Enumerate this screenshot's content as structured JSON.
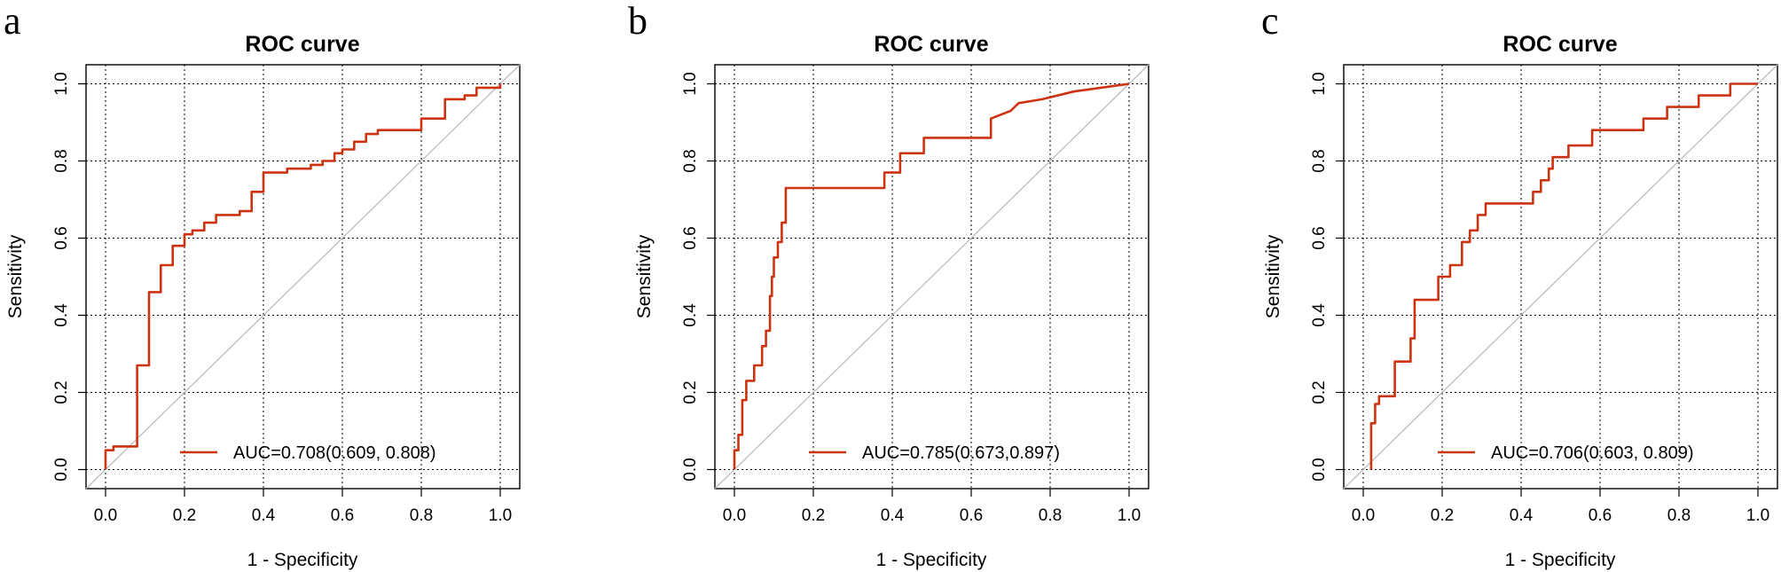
{
  "colors": {
    "curve": "#cc3311",
    "diagonal": "#bdbdbd"
  },
  "chart_data": [
    {
      "panel": "a",
      "type": "line",
      "title": "ROC curve",
      "xlabel": "1 - Specificity",
      "ylabel": "Sensitivity",
      "xlim": [
        0,
        1
      ],
      "ylim": [
        0,
        1
      ],
      "xticks": [
        "0.0",
        "0.2",
        "0.4",
        "0.6",
        "0.8",
        "1.0"
      ],
      "yticks": [
        "0.0",
        "0.2",
        "0.4",
        "0.6",
        "0.8",
        "1.0"
      ],
      "grid": true,
      "legend": {
        "label": "AUC=0.708(0.609, 0.808)",
        "position": "bottom-right"
      },
      "series": [
        {
          "name": "AUC=0.708(0.609, 0.808)",
          "x": [
            0,
            0,
            0.02,
            0.02,
            0.08,
            0.08,
            0.11,
            0.11,
            0.14,
            0.14,
            0.17,
            0.17,
            0.2,
            0.2,
            0.22,
            0.22,
            0.25,
            0.25,
            0.28,
            0.28,
            0.34,
            0.34,
            0.37,
            0.37,
            0.4,
            0.4,
            0.46,
            0.46,
            0.52,
            0.52,
            0.55,
            0.55,
            0.58,
            0.58,
            0.6,
            0.6,
            0.63,
            0.63,
            0.66,
            0.66,
            0.69,
            0.69,
            0.8,
            0.8,
            0.86,
            0.86,
            0.91,
            0.91,
            0.94,
            0.94,
            1,
            1
          ],
          "y": [
            0,
            0.05,
            0.05,
            0.06,
            0.06,
            0.27,
            0.27,
            0.46,
            0.46,
            0.53,
            0.53,
            0.58,
            0.58,
            0.61,
            0.61,
            0.62,
            0.62,
            0.64,
            0.64,
            0.66,
            0.66,
            0.67,
            0.67,
            0.72,
            0.72,
            0.77,
            0.77,
            0.78,
            0.78,
            0.79,
            0.79,
            0.8,
            0.8,
            0.82,
            0.82,
            0.83,
            0.83,
            0.85,
            0.85,
            0.87,
            0.87,
            0.88,
            0.88,
            0.91,
            0.91,
            0.96,
            0.96,
            0.97,
            0.97,
            0.99,
            0.99,
            1
          ]
        }
      ]
    },
    {
      "panel": "b",
      "type": "line",
      "title": "ROC curve",
      "xlabel": "1 - Specificity",
      "ylabel": "Sensitivity",
      "xlim": [
        0,
        1
      ],
      "ylim": [
        0,
        1
      ],
      "xticks": [
        "0.0",
        "0.2",
        "0.4",
        "0.6",
        "0.8",
        "1.0"
      ],
      "yticks": [
        "0.0",
        "0.2",
        "0.4",
        "0.6",
        "0.8",
        "1.0"
      ],
      "grid": true,
      "legend": {
        "label": "AUC=0.785(0.673,0.897)",
        "position": "bottom-right"
      },
      "series": [
        {
          "name": "AUC=0.785(0.673,0.897)",
          "x": [
            0,
            0,
            0.01,
            0.01,
            0.02,
            0.02,
            0.03,
            0.03,
            0.05,
            0.05,
            0.07,
            0.07,
            0.08,
            0.08,
            0.09,
            0.09,
            0.095,
            0.095,
            0.1,
            0.1,
            0.11,
            0.11,
            0.12,
            0.12,
            0.13,
            0.13,
            0.38,
            0.38,
            0.42,
            0.42,
            0.48,
            0.48,
            0.65,
            0.65,
            0.7,
            0.72,
            0.78,
            0.86,
            1
          ],
          "y": [
            0,
            0.05,
            0.05,
            0.09,
            0.09,
            0.18,
            0.18,
            0.23,
            0.23,
            0.27,
            0.27,
            0.32,
            0.32,
            0.36,
            0.36,
            0.45,
            0.45,
            0.5,
            0.5,
            0.55,
            0.55,
            0.59,
            0.59,
            0.64,
            0.64,
            0.73,
            0.73,
            0.77,
            0.77,
            0.82,
            0.82,
            0.86,
            0.86,
            0.91,
            0.93,
            0.95,
            0.96,
            0.98,
            1
          ]
        }
      ]
    },
    {
      "panel": "c",
      "type": "line",
      "title": "ROC curve",
      "xlabel": "1 - Specificity",
      "ylabel": "Sensitivity",
      "xlim": [
        0,
        1
      ],
      "ylim": [
        0,
        1
      ],
      "xticks": [
        "0.0",
        "0.2",
        "0.4",
        "0.6",
        "0.8",
        "1.0"
      ],
      "yticks": [
        "0.0",
        "0.2",
        "0.4",
        "0.6",
        "0.8",
        "1.0"
      ],
      "grid": true,
      "legend": {
        "label": "AUC=0.706(0.603, 0.809)",
        "position": "bottom-right"
      },
      "series": [
        {
          "name": "AUC=0.706(0.603, 0.809)",
          "x": [
            0.02,
            0.02,
            0.03,
            0.03,
            0.04,
            0.04,
            0.08,
            0.08,
            0.12,
            0.12,
            0.13,
            0.13,
            0.19,
            0.19,
            0.22,
            0.22,
            0.25,
            0.25,
            0.27,
            0.27,
            0.29,
            0.29,
            0.31,
            0.31,
            0.43,
            0.43,
            0.45,
            0.45,
            0.47,
            0.47,
            0.48,
            0.48,
            0.52,
            0.52,
            0.58,
            0.58,
            0.71,
            0.71,
            0.77,
            0.77,
            0.85,
            0.85,
            0.93,
            0.93,
            1,
            1
          ],
          "y": [
            0,
            0.12,
            0.12,
            0.17,
            0.17,
            0.19,
            0.19,
            0.28,
            0.28,
            0.34,
            0.34,
            0.44,
            0.44,
            0.5,
            0.5,
            0.53,
            0.53,
            0.59,
            0.59,
            0.62,
            0.62,
            0.66,
            0.66,
            0.69,
            0.69,
            0.72,
            0.72,
            0.75,
            0.75,
            0.78,
            0.78,
            0.81,
            0.81,
            0.84,
            0.84,
            0.88,
            0.88,
            0.91,
            0.91,
            0.94,
            0.94,
            0.97,
            0.97,
            1,
            1,
            1
          ]
        }
      ]
    }
  ]
}
